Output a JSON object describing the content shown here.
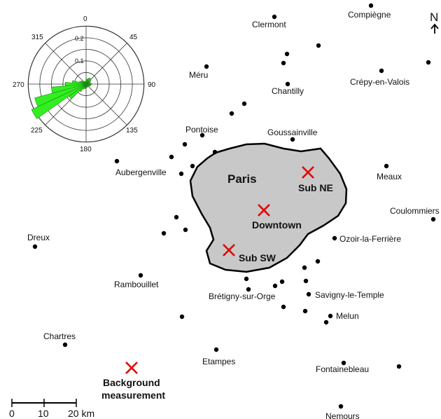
{
  "map": {
    "city_label": "Paris",
    "north_label": "N",
    "scale_bar": {
      "ticks": [
        "0",
        "10",
        "20 km"
      ]
    },
    "colors": {
      "city_fill": "#c8c8c8",
      "marker": "#e60000",
      "rose_fill": "#33ee22",
      "dot": "#000000"
    }
  },
  "towns": [
    {
      "name": "Clermont"
    },
    {
      "name": "Compiègne"
    },
    {
      "name": "Méru"
    },
    {
      "name": "Crépy-en-Valois"
    },
    {
      "name": "Chantilly"
    },
    {
      "name": "Pontoise"
    },
    {
      "name": "Goussainville"
    },
    {
      "name": "Aubergenville"
    },
    {
      "name": "Meaux"
    },
    {
      "name": "Coulommiers"
    },
    {
      "name": "Dreux"
    },
    {
      "name": "Ozoir-la-Ferrière"
    },
    {
      "name": "Rambouillet"
    },
    {
      "name": "Brétigny-sur-Orge"
    },
    {
      "name": "Savigny-le-Temple"
    },
    {
      "name": "Melun"
    },
    {
      "name": "Chartres"
    },
    {
      "name": "Etampes"
    },
    {
      "name": "Fontainebleau"
    },
    {
      "name": "Nemours"
    }
  ],
  "sites": [
    {
      "name": "Sub NE"
    },
    {
      "name": "Downtown"
    },
    {
      "name": "Sub SW"
    },
    {
      "name": "Background measurement"
    }
  ],
  "wind_rose": {
    "direction_labels": [
      "0",
      "45",
      "90",
      "135",
      "180",
      "225",
      "270",
      "315"
    ],
    "ring_labels": [
      "0.1",
      "0.2"
    ],
    "petal_count": 36,
    "petal_values": [
      0.01,
      0.02,
      0.025,
      0.03,
      0.03,
      0.025,
      0.02,
      0.015,
      0.02,
      0.025,
      0.02,
      0.02,
      0.015,
      0.012,
      0.012,
      0.012,
      0.015,
      0.015,
      0.015,
      0.02,
      0.02,
      0.025,
      0.04,
      0.09,
      0.26,
      0.23,
      0.15,
      0.09,
      0.06,
      0.03,
      0.025,
      0.02,
      0.015,
      0.012,
      0.012,
      0.01
    ]
  }
}
